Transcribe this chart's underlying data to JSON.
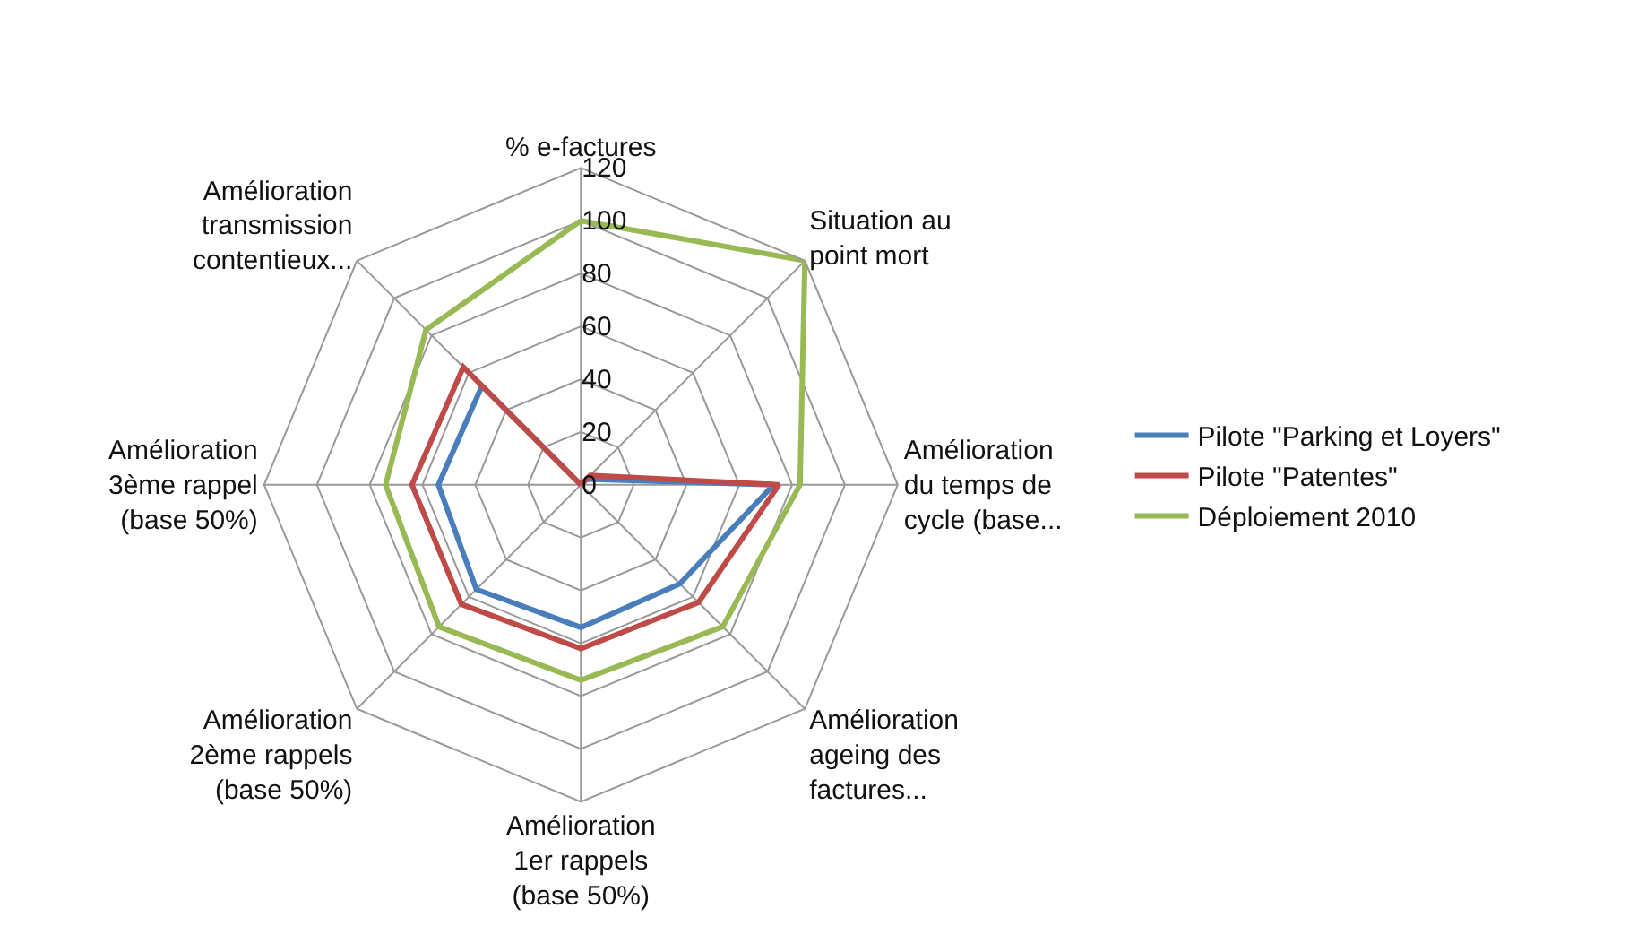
{
  "chart_data": {
    "type": "radar",
    "categories": [
      "% e-factures",
      "Situation au point mort",
      "Amélioration du temps de cycle (base...",
      "Amélioration ageing des factures...",
      "Amélioration 1er rappels (base 50%)",
      "Amélioration 2ème rappels (base 50%)",
      "Amélioration 3ème rappel (base 50%)",
      "Amélioration transmission contentieux..."
    ],
    "series": [
      {
        "name": "Pilote \"Parking et Loyers\"",
        "color": "#4a7ebb",
        "values": [
          0,
          3,
          73,
          53,
          54,
          56,
          54,
          53
        ]
      },
      {
        "name": "Pilote \"Patentes\"",
        "color": "#be4b48",
        "values": [
          0,
          5,
          75,
          63,
          62,
          64,
          64,
          63
        ]
      },
      {
        "name": "Déploiement 2010",
        "color": "#98b954",
        "values": [
          100,
          120,
          83,
          76,
          74,
          76,
          74,
          83
        ]
      }
    ],
    "ylim": [
      0,
      120
    ],
    "yticks": [
      0,
      20,
      40,
      60,
      80,
      100,
      120
    ],
    "grid": true,
    "legend": "right",
    "marker": "none"
  }
}
